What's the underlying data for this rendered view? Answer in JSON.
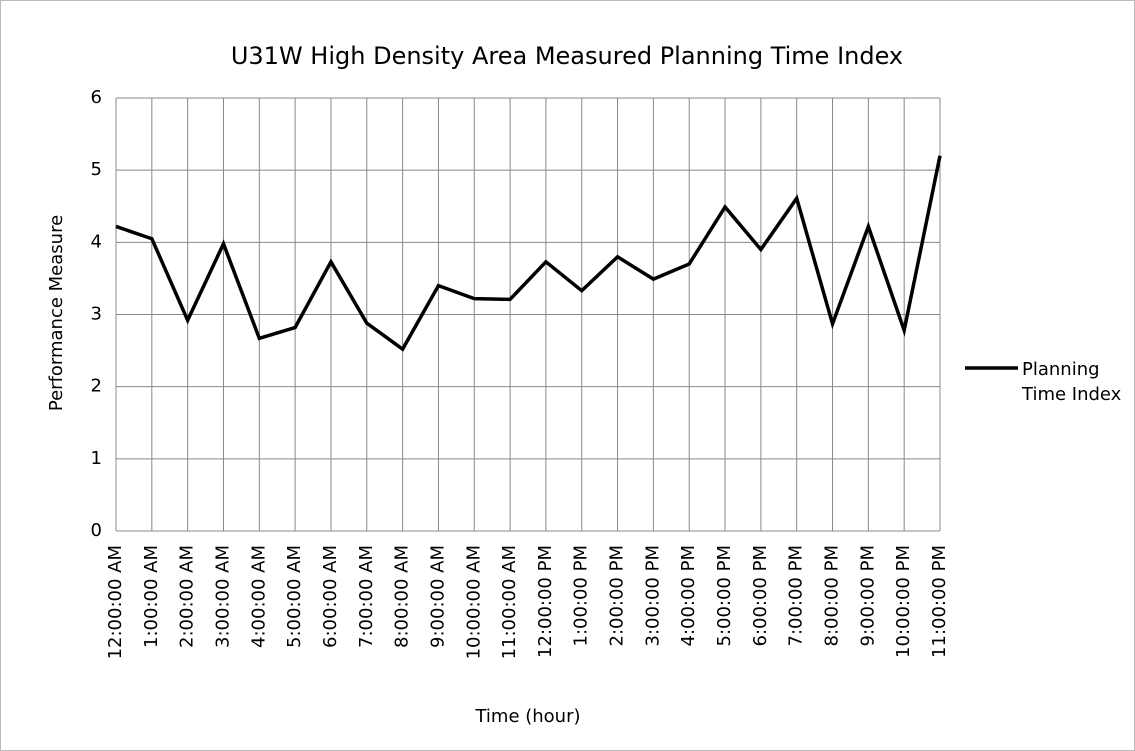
{
  "chart_data": {
    "type": "line",
    "title": "U31W High Density Area Measured Planning Time Index",
    "x_label": "Time (hour)",
    "y_label": "Performance Measure",
    "categories": [
      "12:00:00 AM",
      "1:00:00 AM",
      "2:00:00 AM",
      "3:00:00 AM",
      "4:00:00 AM",
      "5:00:00 AM",
      "6:00:00 AM",
      "7:00:00 AM",
      "8:00:00 AM",
      "9:00:00 AM",
      "10:00:00 AM",
      "11:00:00 AM",
      "12:00:00 PM",
      "1:00:00 PM",
      "2:00:00 PM",
      "3:00:00 PM",
      "4:00:00 PM",
      "5:00:00 PM",
      "6:00:00 PM",
      "7:00:00 PM",
      "8:00:00 PM",
      "9:00:00 PM",
      "10:00:00 PM",
      "11:00:00 PM"
    ],
    "series": [
      {
        "name": "Planning Time Index",
        "color": "#000000",
        "values": [
          4.22,
          4.05,
          2.92,
          3.98,
          2.67,
          2.82,
          3.73,
          2.88,
          2.52,
          3.4,
          3.22,
          3.21,
          3.73,
          3.33,
          3.8,
          3.49,
          3.7,
          4.49,
          3.9,
          4.61,
          2.87,
          4.22,
          2.78,
          5.2
        ]
      }
    ],
    "ylim": [
      0,
      6
    ],
    "yticks": [
      0,
      1,
      2,
      3,
      4,
      5,
      6
    ],
    "grid": true,
    "legend": "right"
  }
}
